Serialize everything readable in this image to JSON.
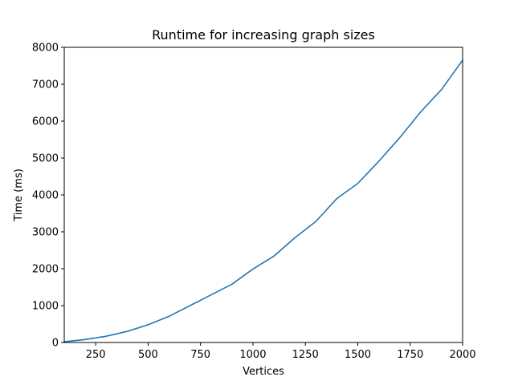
{
  "chart_data": {
    "type": "line",
    "title": "Runtime for increasing graph sizes",
    "xlabel": "Vertices",
    "ylabel": "Time (ms)",
    "xlim": [
      100,
      2000
    ],
    "ylim": [
      0,
      8000
    ],
    "x_ticks": [
      250,
      500,
      750,
      1000,
      1250,
      1500,
      1750,
      2000
    ],
    "y_ticks": [
      0,
      1000,
      2000,
      3000,
      4000,
      5000,
      6000,
      7000,
      8000
    ],
    "grid": false,
    "series": [
      {
        "color": "#1f77b4",
        "x": [
          100,
          200,
          300,
          400,
          500,
          600,
          700,
          800,
          900,
          1000,
          1100,
          1200,
          1300,
          1400,
          1500,
          1600,
          1700,
          1800,
          1900,
          2000
        ],
        "y": [
          20,
          80,
          170,
          300,
          480,
          710,
          1000,
          1290,
          1580,
          1990,
          2340,
          2840,
          3280,
          3900,
          4310,
          4910,
          5550,
          6250,
          6860,
          7650
        ]
      }
    ]
  }
}
